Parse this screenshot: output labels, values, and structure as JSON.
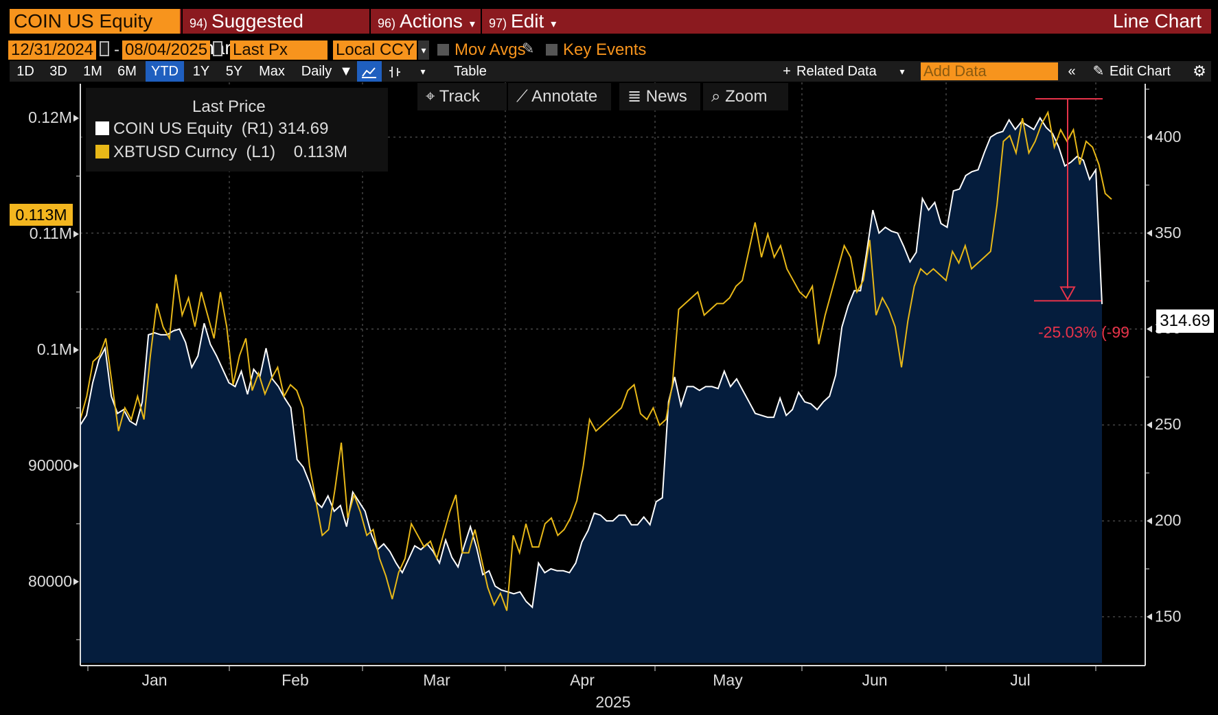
{
  "toolbar": {
    "security": "COIN US Equity",
    "menu": [
      {
        "num": "94)",
        "label": "Suggested Charts"
      },
      {
        "num": "96)",
        "label": "Actions"
      },
      {
        "num": "97)",
        "label": "Edit"
      }
    ],
    "chart_kind": "Line Chart"
  },
  "settings": {
    "start_date": "12/31/2024",
    "end_date": "08/04/2025",
    "field": "Last Px",
    "currency": "Local CCY",
    "mov_avgs": "Mov Avgs",
    "key_events": "Key Events"
  },
  "periods": [
    "1D",
    "3D",
    "1M",
    "6M",
    "YTD",
    "1Y",
    "5Y",
    "Max"
  ],
  "active_period": "YTD",
  "frequency": "Daily",
  "table_label": "Table",
  "related_data": "Related Data",
  "add_data_placeholder": "Add Data",
  "edit_chart": "Edit Chart",
  "chart_tools": [
    "Track",
    "Annotate",
    "News",
    "Zoom"
  ],
  "legend": {
    "title": "Last Price",
    "rows": [
      {
        "name": "COIN US Equity",
        "axis": "(R1)",
        "value": "314.69",
        "color": "#ffffff"
      },
      {
        "name": "XBTUSD Curncy",
        "axis": "(L1)",
        "value": "0.113M",
        "color": "#e8b818"
      }
    ]
  },
  "last_value_left": "0.113M",
  "last_value_right": "314.69",
  "drawdown_label": "-25.03% (-99",
  "colors": {
    "accent": "#f7941d",
    "menubar": "#8b1a1f",
    "area": "#051d3d",
    "btc": "#e8b818",
    "drawdown": "#e8334a"
  },
  "chart_data": {
    "type": "line",
    "year_label": "2025",
    "x_labels": [
      "Jan",
      "Feb",
      "Mar",
      "Apr",
      "May",
      "Jun",
      "Jul"
    ],
    "left_axis": {
      "ticks": [
        80000,
        90000,
        100000,
        110000,
        120000
      ],
      "tick_labels": [
        "80000",
        "90000",
        "0.1M",
        "0.11M",
        "0.12M"
      ],
      "range": [
        73000,
        122500
      ]
    },
    "right_axis": {
      "ticks": [
        150,
        200,
        250,
        300,
        350,
        400
      ],
      "tick_labels": [
        "150",
        "200",
        "250",
        "300",
        "350",
        "400"
      ],
      "range": [
        126,
        425
      ]
    },
    "grid": true,
    "legend_position": "top-left",
    "series": [
      {
        "name": "COIN US Equity",
        "axis": "right",
        "style": "area",
        "color": "#ffffff",
        "values": [
          250,
          255,
          272,
          284,
          290,
          265,
          256,
          258,
          252,
          250,
          262,
          297,
          298,
          297,
          297,
          299,
          300,
          293,
          280,
          286,
          303,
          292,
          286,
          279,
          272,
          270,
          278,
          266,
          279,
          275,
          290,
          274,
          270,
          264,
          259,
          232,
          228,
          220,
          210,
          207,
          213,
          205,
          208,
          197,
          215,
          210,
          205,
          193,
          185,
          188,
          184,
          178,
          173,
          180,
          187,
          185,
          188,
          184,
          178,
          190,
          181,
          176,
          187,
          197,
          186,
          172,
          174,
          166,
          164,
          163,
          162,
          163,
          158,
          155,
          178,
          173,
          175,
          174,
          174,
          173,
          178,
          189,
          195,
          204,
          203,
          200,
          200,
          203,
          203,
          198,
          198,
          202,
          198,
          210,
          212,
          262,
          275,
          260,
          270,
          270,
          268,
          270,
          270,
          269,
          278,
          270,
          274,
          268,
          262,
          256,
          255,
          254,
          254,
          264,
          255,
          258,
          267,
          262,
          261,
          258,
          262,
          265,
          276,
          301,
          312,
          320,
          320,
          340,
          362,
          350,
          353,
          351,
          350,
          343,
          335,
          340,
          368,
          362,
          366,
          355,
          353,
          372,
          373,
          380,
          382,
          383,
          392,
          400,
          402,
          403,
          409,
          404,
          408,
          406,
          404,
          410,
          405,
          402,
          395,
          385,
          387,
          390,
          388,
          378,
          383,
          313
        ]
      },
      {
        "name": "XBTUSD Curncy",
        "axis": "left",
        "style": "line",
        "color": "#e8b818",
        "values": [
          94000,
          96000,
          99000,
          99500,
          101000,
          97000,
          93000,
          95000,
          94000,
          96000,
          94000,
          99500,
          104000,
          102000,
          101000,
          106500,
          103000,
          104500,
          102000,
          105000,
          103000,
          101000,
          105000,
          102000,
          97000,
          99500,
          101000,
          96500,
          98000,
          96200,
          97500,
          98500,
          96000,
          97000,
          96500,
          95000,
          90000,
          87000,
          84000,
          84500,
          88000,
          92000,
          85500,
          87500,
          86000,
          84000,
          84500,
          82000,
          80500,
          78500,
          80800,
          82000,
          85000,
          84000,
          83000,
          83500,
          82000,
          84000,
          86000,
          87500,
          82500,
          82500,
          84500,
          82000,
          79500,
          78000,
          79000,
          77500,
          84000,
          82500,
          85000,
          83000,
          83000,
          85000,
          85500,
          84000,
          84500,
          85500,
          87000,
          90000,
          94000,
          93000,
          93500,
          94000,
          94500,
          95000,
          96500,
          97000,
          94500,
          94000,
          95000,
          93500,
          94000,
          97000,
          103500,
          104000,
          104500,
          105000,
          103000,
          103500,
          104000,
          104000,
          104500,
          105500,
          106000,
          108500,
          111000,
          108000,
          110000,
          108000,
          109000,
          107000,
          106000,
          105000,
          104500,
          105500,
          100500,
          103000,
          105000,
          107000,
          109000,
          108000,
          105000,
          106000,
          109500,
          103000,
          104500,
          103500,
          102000,
          98500,
          102500,
          105500,
          107000,
          106500,
          107000,
          106500,
          106000,
          108500,
          107500,
          109000,
          107000,
          107500,
          108000,
          108500,
          112500,
          118000,
          118500,
          117000,
          120000,
          117000,
          118000,
          119500,
          120500,
          117500,
          119000,
          118000,
          119000,
          116000,
          118000,
          117500,
          116000,
          113500,
          113000
        ]
      }
    ],
    "drawdown": {
      "peak": 420,
      "trough": 314.69,
      "pct": "-25.03%"
    }
  }
}
